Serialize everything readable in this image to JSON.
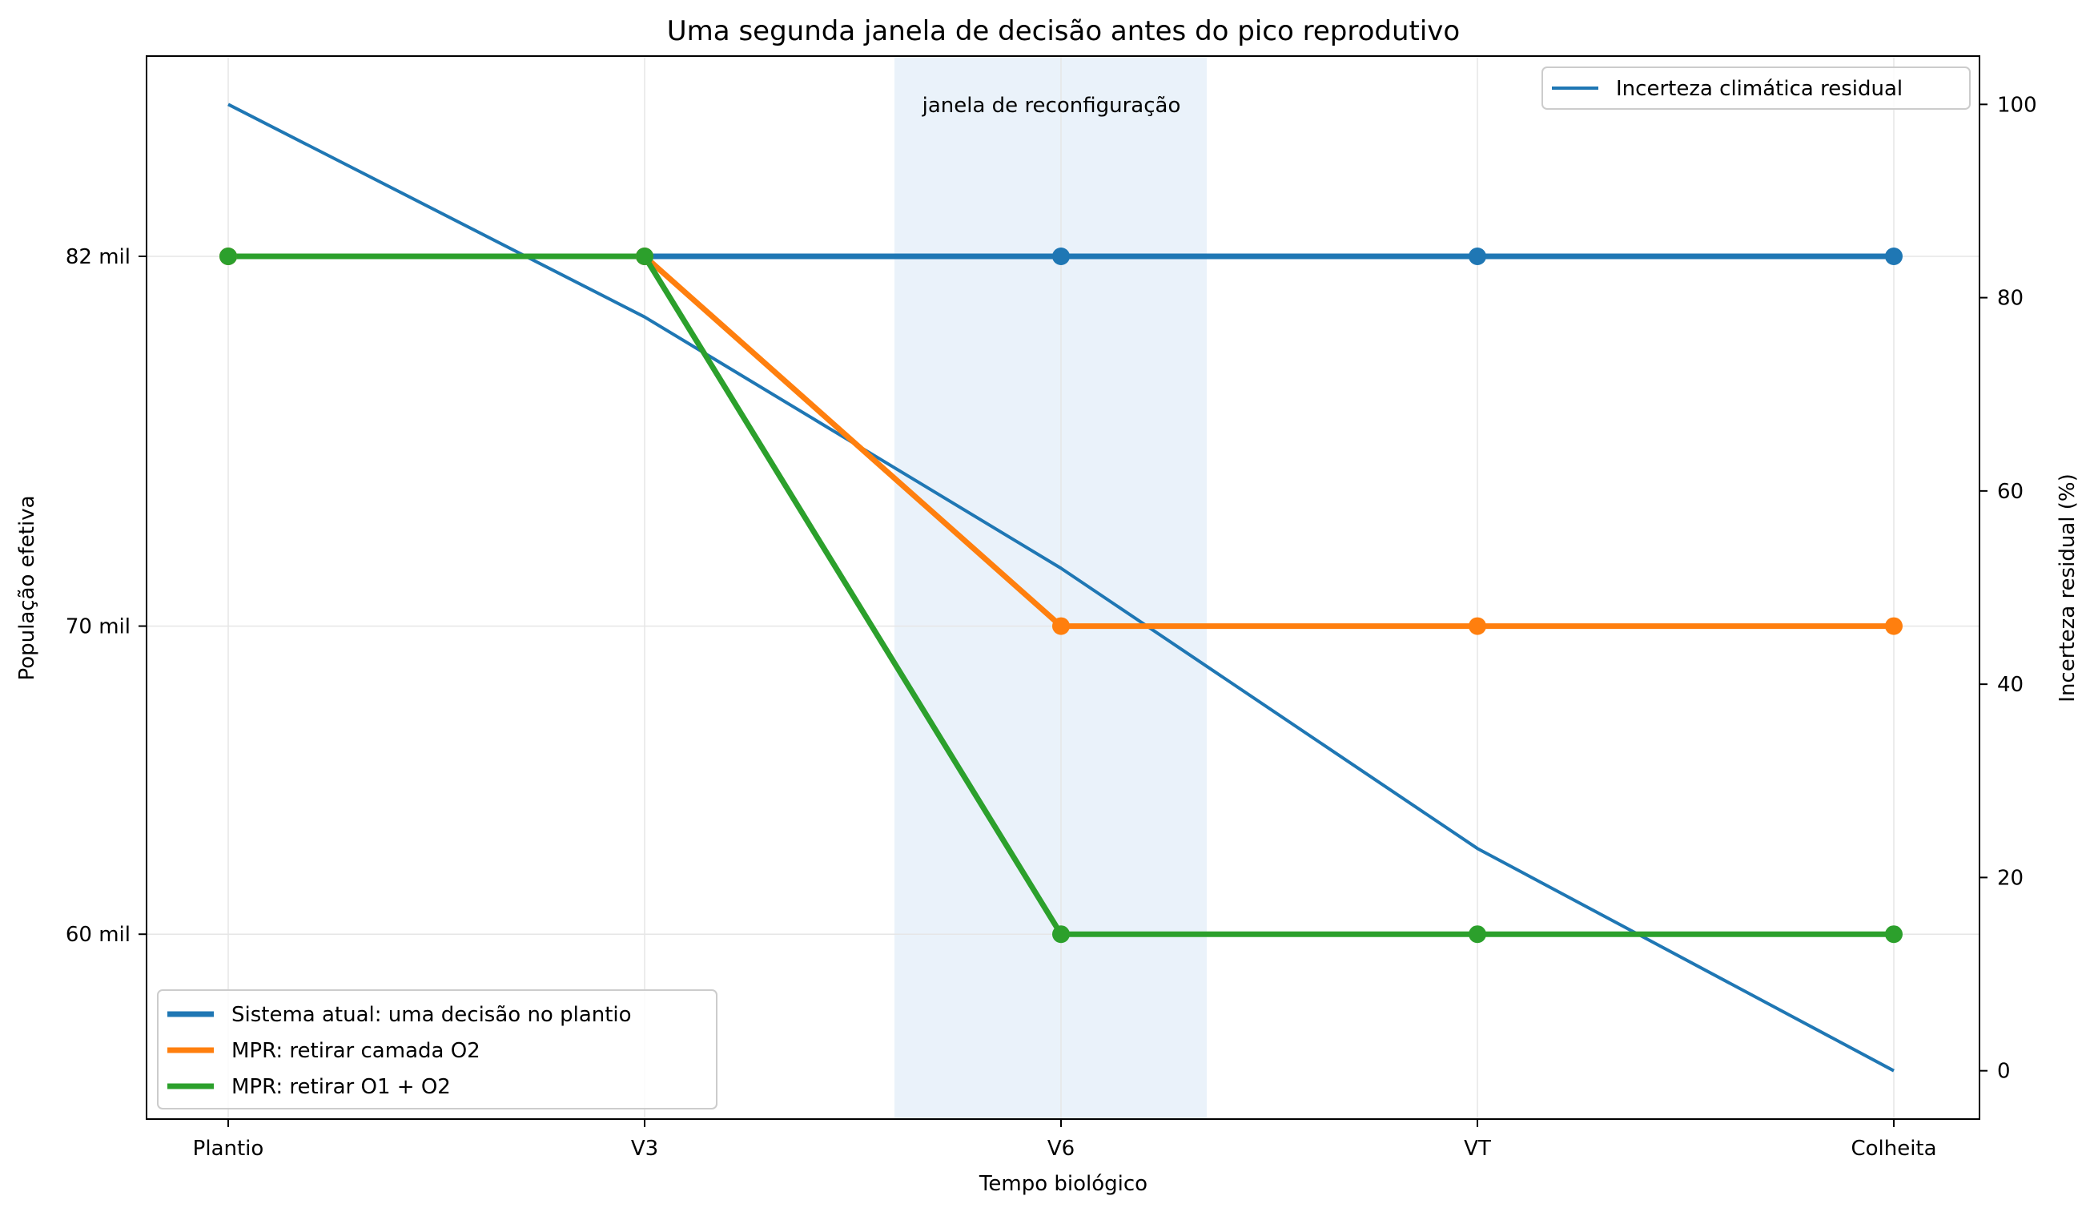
{
  "chart_data": {
    "type": "line",
    "title": "Uma segunda janela de decisão antes do pico reprodutivo",
    "xlabel": "Tempo biológico",
    "ylabel": "População efetiva",
    "y2label": "Incerteza residual (%)",
    "categories": [
      "Plantio",
      "V3",
      "V6",
      "VT",
      "Colheita"
    ],
    "y_ticks": [
      60,
      70,
      82
    ],
    "y_tick_labels": [
      "60 mil",
      "70 mil",
      "82 mil"
    ],
    "ylim": [
      54,
      88.5
    ],
    "y2_ticks": [
      0,
      20,
      40,
      60,
      80,
      100
    ],
    "y2lim": [
      -5,
      105
    ],
    "grid": true,
    "shaded_region": {
      "x_start": 1.6,
      "x_end": 2.35,
      "label": "janela de reconfiguração",
      "color": "#eaf2fa"
    },
    "series": [
      {
        "name": "Sistema atual: uma decisão no plantio",
        "axis": "left",
        "color": "#1f77b4",
        "values": [
          82,
          82,
          82,
          82,
          82
        ],
        "markers": true
      },
      {
        "name": "MPR: retirar camada O2",
        "axis": "left",
        "color": "#ff7f0e",
        "values": [
          82,
          82,
          70,
          70,
          70
        ],
        "markers": true
      },
      {
        "name": "MPR: retirar O1 + O2",
        "axis": "left",
        "color": "#2ca02c",
        "values": [
          82,
          82,
          60,
          60,
          60
        ],
        "markers": true
      }
    ],
    "secondary_series": [
      {
        "name": "Incerteza climática residual",
        "axis": "right",
        "color": "#1f77b4",
        "values": [
          100,
          78,
          52,
          23,
          0
        ],
        "markers": false
      }
    ],
    "legend_left_placement": "lower-left",
    "legend_right_placement": "upper-right"
  }
}
